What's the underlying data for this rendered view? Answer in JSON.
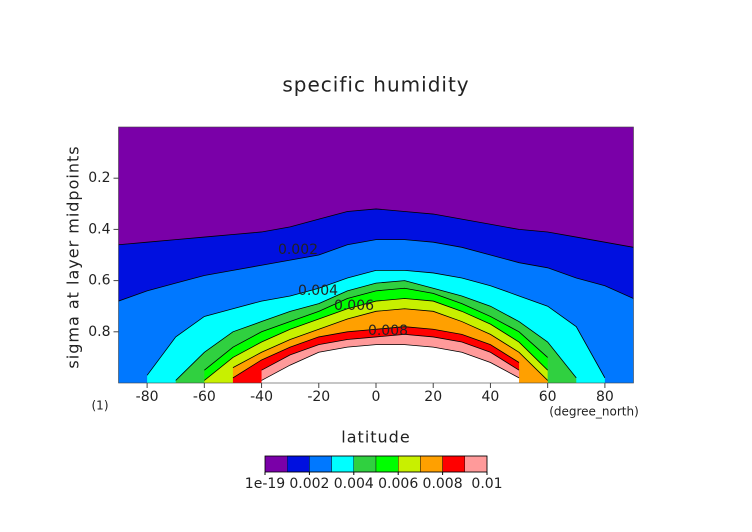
{
  "chart_data": {
    "type": "contour",
    "title": "specific humidity",
    "x_label": "latitude",
    "x_units": "(degree_north)",
    "y_label": "sigma at layer midpoints",
    "corner_label": "(1)",
    "x": [
      -90,
      -80,
      -70,
      -60,
      -50,
      -40,
      -30,
      -20,
      -10,
      0,
      10,
      20,
      30,
      40,
      50,
      60,
      70,
      80,
      90
    ],
    "xlim": [
      -90,
      90
    ],
    "xticks": [
      -80,
      -60,
      -40,
      -20,
      0,
      20,
      40,
      60,
      80
    ],
    "ylim": [
      0,
      1
    ],
    "yticks": [
      0.2,
      0.4,
      0.6,
      0.8
    ],
    "y_inverted": true,
    "base_color": "#7a00a8",
    "contours": [
      {
        "level": 0.001,
        "color": "#0010e0",
        "sigma": [
          0.46,
          0.45,
          0.44,
          0.43,
          0.42,
          0.41,
          0.39,
          0.36,
          0.33,
          0.32,
          0.33,
          0.34,
          0.36,
          0.38,
          0.4,
          0.41,
          0.43,
          0.45,
          0.47
        ]
      },
      {
        "level": 0.002,
        "color": "#0078ff",
        "sigma": [
          0.68,
          0.64,
          0.61,
          0.58,
          0.56,
          0.54,
          0.52,
          0.5,
          0.46,
          0.44,
          0.44,
          0.45,
          0.47,
          0.5,
          0.53,
          0.55,
          0.59,
          0.62,
          0.67
        ]
      },
      {
        "level": 0.003,
        "color": "#00ffff",
        "sigma": [
          null,
          0.97,
          0.82,
          0.74,
          0.71,
          0.68,
          0.66,
          0.63,
          0.59,
          0.56,
          0.56,
          0.57,
          0.59,
          0.62,
          0.66,
          0.7,
          0.78,
          0.98,
          null
        ]
      },
      {
        "level": 0.004,
        "color": "#30d040",
        "sigma": [
          null,
          null,
          0.99,
          0.88,
          0.8,
          0.76,
          0.72,
          0.69,
          0.64,
          0.61,
          0.6,
          0.63,
          0.66,
          0.7,
          0.76,
          0.84,
          0.98,
          null,
          null
        ]
      },
      {
        "level": 0.005,
        "color": "#00ff00",
        "sigma": [
          null,
          null,
          null,
          0.95,
          0.86,
          0.8,
          0.76,
          0.72,
          0.67,
          0.64,
          0.63,
          0.65,
          0.69,
          0.74,
          0.8,
          0.9,
          null,
          null,
          null
        ]
      },
      {
        "level": 0.006,
        "color": "#c8f000",
        "sigma": [
          null,
          null,
          null,
          0.99,
          0.9,
          0.84,
          0.79,
          0.75,
          0.71,
          0.68,
          0.67,
          0.68,
          0.72,
          0.77,
          0.84,
          0.95,
          null,
          null,
          null
        ]
      },
      {
        "level": 0.007,
        "color": "#ffa000",
        "sigma": [
          null,
          null,
          null,
          null,
          0.94,
          0.88,
          0.83,
          0.79,
          0.75,
          0.72,
          0.71,
          0.72,
          0.76,
          0.81,
          0.88,
          0.99,
          null,
          null,
          null
        ]
      },
      {
        "level": 0.008,
        "color": "#ff0000",
        "sigma": [
          null,
          null,
          null,
          null,
          0.98,
          0.91,
          0.86,
          0.82,
          0.8,
          0.79,
          0.78,
          0.79,
          0.81,
          0.85,
          0.92,
          null,
          null,
          null,
          null
        ]
      },
      {
        "level": 0.009,
        "color": "#ff9a9a",
        "sigma": [
          null,
          null,
          null,
          null,
          null,
          0.95,
          0.89,
          0.85,
          0.83,
          0.82,
          0.81,
          0.82,
          0.84,
          0.88,
          0.95,
          null,
          null,
          null,
          null
        ]
      },
      {
        "level": 0.01,
        "color": "#ffffff",
        "sigma": [
          null,
          null,
          null,
          null,
          null,
          0.99,
          0.93,
          0.88,
          0.86,
          0.85,
          0.85,
          0.86,
          0.88,
          0.92,
          0.98,
          null,
          null,
          null,
          null
        ]
      }
    ],
    "colorbar_ticks": [
      {
        "value": 1e-19,
        "label": "1e-19"
      },
      0.002,
      0.004,
      0.006,
      0.008,
      0.01
    ]
  }
}
